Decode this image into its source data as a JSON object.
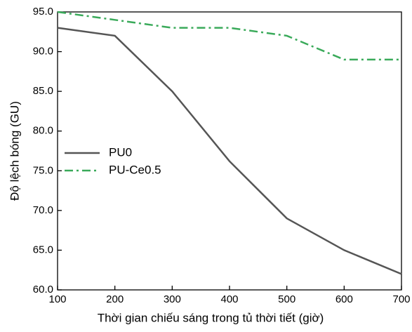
{
  "chart_data": {
    "type": "line",
    "x": [
      100,
      200,
      300,
      400,
      500,
      600,
      700
    ],
    "xlabel": "Thời gian chiếu sáng trong tủ thời tiết (giờ)",
    "ylabel": "Độ lệch bóng (GU)",
    "series": [
      {
        "name": "PU0",
        "color": "#555555",
        "dash": "solid",
        "values": [
          93,
          92,
          85,
          76.2,
          69,
          65,
          62
        ]
      },
      {
        "name": "PU-Ce0.5",
        "color": "#3aaa5a",
        "dash": "dashdot",
        "values": [
          95,
          94,
          93,
          93,
          92,
          89,
          89
        ]
      }
    ],
    "xlim": [
      100,
      700
    ],
    "xticks": [
      100,
      200,
      300,
      400,
      500,
      600,
      700
    ],
    "ylim": [
      60,
      95
    ],
    "yticks": [
      {
        "value": 60,
        "label": "60.0"
      },
      {
        "value": 65,
        "label": "65.0"
      },
      {
        "value": 70,
        "label": "70.0"
      },
      {
        "value": 75,
        "label": "75.0"
      },
      {
        "value": 80,
        "label": "80.0"
      },
      {
        "value": 85,
        "label": "85.0"
      },
      {
        "value": 90,
        "label": "90.0"
      },
      {
        "value": 95,
        "label": "95.0"
      }
    ],
    "legend": "left",
    "grid": false
  }
}
